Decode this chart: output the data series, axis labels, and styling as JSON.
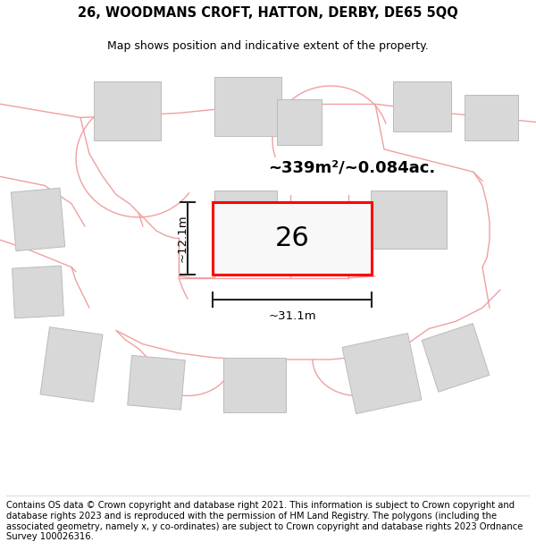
{
  "title": "26, WOODMANS CROFT, HATTON, DERBY, DE65 5QQ",
  "subtitle": "Map shows position and indicative extent of the property.",
  "footer": "Contains OS data © Crown copyright and database right 2021. This information is subject to Crown copyright and database rights 2023 and is reproduced with the permission of HM Land Registry. The polygons (including the associated geometry, namely x, y co-ordinates) are subject to Crown copyright and database rights 2023 Ordnance Survey 100026316.",
  "area_label": "~339m²/~0.084ac.",
  "width_label": "~31.1m",
  "height_label": "~12.1m",
  "plot_number": "26",
  "bg_color": "#ffffff",
  "plot_fill": "#ffffff",
  "plot_border": "#ff0000",
  "road_color": "#f0a0a0",
  "building_color": "#d8d8d8",
  "building_edge": "#bbbbbb",
  "dim_color": "#222222",
  "title_fontsize": 10.5,
  "subtitle_fontsize": 9,
  "footer_fontsize": 7.2,
  "area_fontsize": 13,
  "num_fontsize": 22,
  "dim_fontsize": 9.5
}
